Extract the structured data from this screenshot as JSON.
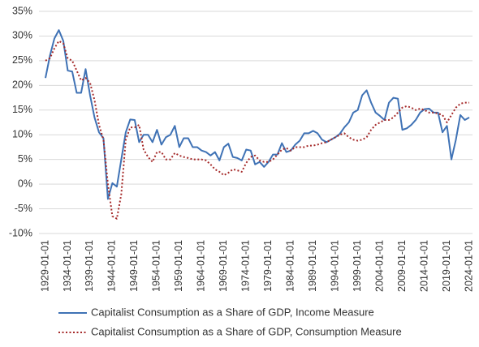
{
  "chart_data": {
    "type": "line",
    "x": [
      "1929-01-01",
      "1930-01-01",
      "1931-01-01",
      "1932-01-01",
      "1933-01-01",
      "1934-01-01",
      "1935-01-01",
      "1936-01-01",
      "1937-01-01",
      "1938-01-01",
      "1939-01-01",
      "1940-01-01",
      "1941-01-01",
      "1942-01-01",
      "1943-01-01",
      "1944-01-01",
      "1945-01-01",
      "1946-01-01",
      "1947-01-01",
      "1948-01-01",
      "1949-01-01",
      "1950-01-01",
      "1951-01-01",
      "1952-01-01",
      "1953-01-01",
      "1954-01-01",
      "1955-01-01",
      "1956-01-01",
      "1957-01-01",
      "1958-01-01",
      "1959-01-01",
      "1960-01-01",
      "1961-01-01",
      "1962-01-01",
      "1963-01-01",
      "1964-01-01",
      "1965-01-01",
      "1966-01-01",
      "1967-01-01",
      "1968-01-01",
      "1969-01-01",
      "1970-01-01",
      "1971-01-01",
      "1972-01-01",
      "1973-01-01",
      "1974-01-01",
      "1975-01-01",
      "1976-01-01",
      "1977-01-01",
      "1978-01-01",
      "1979-01-01",
      "1980-01-01",
      "1981-01-01",
      "1982-01-01",
      "1983-01-01",
      "1984-01-01",
      "1985-01-01",
      "1986-01-01",
      "1987-01-01",
      "1988-01-01",
      "1989-01-01",
      "1990-01-01",
      "1991-01-01",
      "1992-01-01",
      "1993-01-01",
      "1994-01-01",
      "1995-01-01",
      "1996-01-01",
      "1997-01-01",
      "1998-01-01",
      "1999-01-01",
      "2000-01-01",
      "2001-01-01",
      "2002-01-01",
      "2003-01-01",
      "2004-01-01",
      "2005-01-01",
      "2006-01-01",
      "2007-01-01",
      "2008-01-01",
      "2009-01-01",
      "2010-01-01",
      "2011-01-01",
      "2012-01-01",
      "2013-01-01",
      "2014-01-01",
      "2015-01-01",
      "2016-01-01",
      "2017-01-01",
      "2018-01-01",
      "2019-01-01",
      "2020-01-01",
      "2021-01-01",
      "2022-01-01",
      "2023-01-01",
      "2024-01-01"
    ],
    "xticks": [
      "1929-01-01",
      "1934-01-01",
      "1939-01-01",
      "1944-01-01",
      "1949-01-01",
      "1954-01-01",
      "1959-01-01",
      "1964-01-01",
      "1969-01-01",
      "1974-01-01",
      "1979-01-01",
      "1984-01-01",
      "1989-01-01",
      "1994-01-01",
      "1999-01-01",
      "2004-01-01",
      "2009-01-01",
      "2014-01-01",
      "2019-01-01",
      "2024-01-01"
    ],
    "series": [
      {
        "name": "Capitalist Consumption as a Share of GDP, Income Measure",
        "color": "#3f72b5",
        "dash": "solid",
        "values": [
          21.5,
          26,
          29.5,
          31.2,
          29,
          23,
          22.8,
          18.5,
          18.5,
          23.3,
          18,
          13.5,
          10.5,
          9.3,
          -3,
          0.2,
          -0.5,
          5,
          10.5,
          13.1,
          13,
          8.5,
          10,
          10,
          8.5,
          11,
          8,
          9.5,
          10,
          11.8,
          7.5,
          9.3,
          9.3,
          7.5,
          7.5,
          6.8,
          6.5,
          5.8,
          6.5,
          4.8,
          7.5,
          8.2,
          5.5,
          5.3,
          4.8,
          7,
          6.8,
          4,
          4.5,
          3.5,
          4.5,
          6,
          6,
          8.3,
          6.5,
          6.8,
          8,
          8.8,
          10.3,
          10.3,
          10.8,
          10.3,
          9,
          8.5,
          9,
          9.5,
          10.2,
          11.5,
          12.5,
          14.5,
          15,
          18,
          19,
          16.5,
          14.5,
          13.8,
          13,
          16.5,
          17.5,
          17.3,
          11,
          11.3,
          12,
          13,
          14.5,
          15.2,
          15.3,
          14.5,
          14.5,
          10.5,
          11.8,
          5,
          9,
          14,
          13,
          13.5
        ]
      },
      {
        "name": "Capitalist Consumption as a Share of GDP, Consumption Measure",
        "color": "#a52a2a",
        "dash": "dotted",
        "values": [
          25,
          25.5,
          27.5,
          29,
          28.5,
          25.5,
          25,
          23,
          21,
          21.5,
          20.5,
          17,
          12,
          9,
          0,
          -6.5,
          -7,
          -2,
          9,
          11.5,
          11.5,
          12,
          7,
          5.5,
          4.5,
          6.5,
          6.5,
          5,
          5,
          6.3,
          5.8,
          5.5,
          5.3,
          5,
          5,
          5,
          4.8,
          4,
          3,
          2.5,
          1.8,
          2.3,
          3,
          2.8,
          2.5,
          4.3,
          5.5,
          5.8,
          4.8,
          4.5,
          4.5,
          5,
          6,
          7,
          7.3,
          6.8,
          7.5,
          7.5,
          7.5,
          7.8,
          7.8,
          8,
          8.3,
          8.5,
          9,
          9.5,
          10,
          10.3,
          9.5,
          9,
          8.8,
          9,
          9.5,
          11,
          12,
          12.5,
          13,
          13,
          13.5,
          14.5,
          15.5,
          15.8,
          15.5,
          15,
          15.3,
          15,
          14.5,
          14.5,
          14.3,
          14,
          12.5,
          14,
          15.5,
          16.3,
          16.5,
          16.5
        ]
      }
    ],
    "ylim": [
      -10,
      35
    ],
    "yticks": [
      {
        "value": -10,
        "label": "-10%"
      },
      {
        "value": -5,
        "label": "-5%"
      },
      {
        "value": 0,
        "label": "0%"
      },
      {
        "value": 5,
        "label": "5%"
      },
      {
        "value": 10,
        "label": "10%"
      },
      {
        "value": 15,
        "label": "15%"
      },
      {
        "value": 20,
        "label": "20%"
      },
      {
        "value": 25,
        "label": "25%"
      },
      {
        "value": 30,
        "label": "30%"
      },
      {
        "value": 35,
        "label": "35%"
      }
    ],
    "grid": true,
    "legend": "bottom"
  }
}
